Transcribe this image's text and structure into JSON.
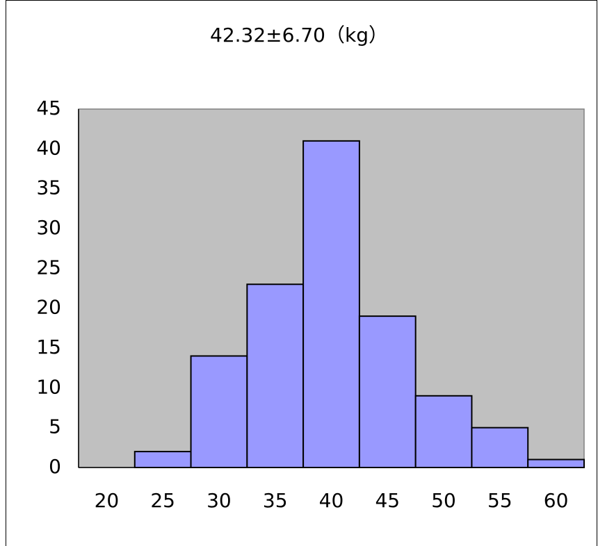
{
  "chart_data": {
    "type": "bar",
    "title": "42.32±6.70（kg）",
    "categories": [
      "20",
      "25",
      "30",
      "35",
      "40",
      "45",
      "50",
      "55",
      "60"
    ],
    "values": [
      0,
      2,
      14,
      23,
      41,
      19,
      9,
      5,
      1
    ],
    "color": "#9999ff",
    "plot_background": "#c0c0c0",
    "ylim": [
      0,
      45
    ],
    "yticks": [
      0,
      5,
      10,
      15,
      20,
      25,
      30,
      35,
      40,
      45
    ],
    "grid": false
  }
}
